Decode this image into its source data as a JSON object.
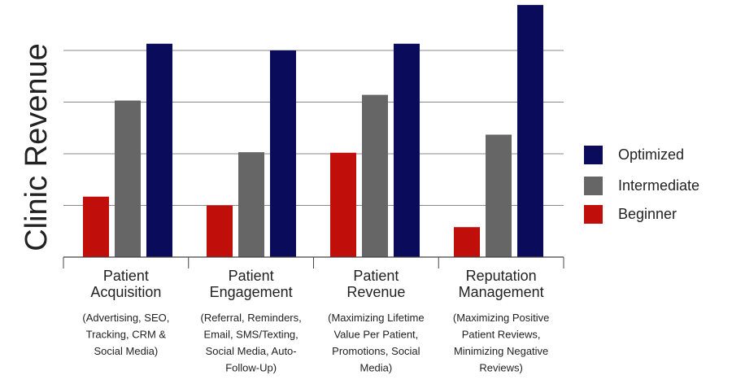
{
  "chart_data": {
    "type": "bar",
    "title": "",
    "xlabel": "",
    "ylabel": "Clinic Revenue",
    "ylim": [
      0,
      5
    ],
    "grid": true,
    "legend_position": "right",
    "categories": [
      {
        "title_lines": [
          "Patient",
          "Acquisition"
        ],
        "desc_lines": [
          "(Advertising, SEO,",
          "Tracking, CRM &",
          "Social Media)"
        ]
      },
      {
        "title_lines": [
          "Patient",
          "Engagement"
        ],
        "desc_lines": [
          "(Referral, Reminders,",
          "Email, SMS/Texting,",
          "Social Media, Auto-",
          "Follow-Up)"
        ]
      },
      {
        "title_lines": [
          "Patient",
          "Revenue"
        ],
        "desc_lines": [
          "(Maximizing Lifetime",
          "Value Per Patient,",
          "Promotions, Social",
          "Media)"
        ]
      },
      {
        "title_lines": [
          "Reputation",
          "Management"
        ],
        "desc_lines": [
          "(Maximizing Positive",
          "Patient Reviews,",
          "Minimizing Negative",
          "Reviews)"
        ]
      }
    ],
    "series": [
      {
        "name": "Beginner",
        "color": "#c00f0b",
        "values": [
          1.17,
          1.0,
          2.02,
          0.58
        ]
      },
      {
        "name": "Intermediate",
        "color": "#666666",
        "values": [
          3.03,
          2.03,
          3.14,
          2.37
        ]
      },
      {
        "name": "Optimized",
        "color": "#0b0b5c",
        "values": [
          4.13,
          4.0,
          4.13,
          4.88
        ]
      }
    ],
    "legend_order": [
      "Optimized",
      "Intermediate",
      "Beginner"
    ]
  },
  "colors": {
    "axis": "#444444",
    "grid": "#8a8a8a"
  }
}
